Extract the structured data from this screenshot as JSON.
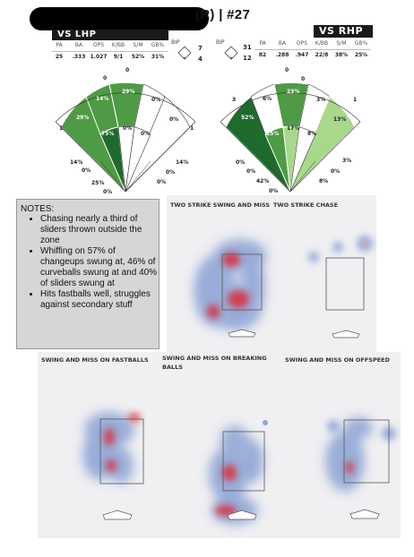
{
  "header": {
    "title": "(R) | #27"
  },
  "lhp": {
    "title": "VS LHP",
    "headers": [
      "PA",
      "BA",
      "OPS",
      "K/BB",
      "S/M",
      "GB%"
    ],
    "values": [
      "25",
      ".333",
      "1.027",
      "9/1",
      "52%",
      "31%"
    ],
    "bip_label": "BIP",
    "bip_top": "7",
    "bip_bottom": "4",
    "zones": {
      "outer_left": "29%",
      "outer_leftcenter": "14%",
      "outer_center": "29%",
      "outer_rightcenter": "0%",
      "outer_right": "0%",
      "inner_left": "75%",
      "inner_center": "0%",
      "inner_right": "0%",
      "foul_left": "14%",
      "foul_right": "14%",
      "bottom_1": "0%",
      "bottom_2": "25%",
      "bottom_3": "0%",
      "bottom_4": "0%",
      "bottom_5": "0%",
      "arc_labels": [
        "0",
        "1",
        "0",
        "1"
      ]
    }
  },
  "rhp": {
    "title": "VS RHP",
    "headers": [
      "PA",
      "BA",
      "OPS",
      "K/BB",
      "S/M",
      "GB%"
    ],
    "values": [
      "82",
      ".288",
      ".947",
      "22/8",
      "38%",
      "25%"
    ],
    "bip_label": "BIP",
    "bip_top": "31",
    "bip_bottom": "12",
    "zones": {
      "outer_left": "52%",
      "outer_leftcenter": "6%",
      "outer_center": "23%",
      "outer_rightcenter": "3%",
      "outer_right": "13%",
      "inner_left": "25%",
      "inner_center": "17%",
      "inner_right": "8%",
      "foul_left": "0%",
      "foul_right": "3%",
      "bottom_1": "0%",
      "bottom_2": "42%",
      "bottom_3": "0%",
      "bottom_4": "8%",
      "bottom_5": "0%",
      "arc_labels": [
        "3",
        "0",
        "1",
        "0"
      ]
    }
  },
  "notes": {
    "heading": "NOTES:",
    "items": [
      "Chasing nearly a third of sliders thrown outside the zone",
      "Whiffing on 57% of changeups swung at, 46% of curveballs swung at and 40% of sliders swung at",
      "Hits fastballs well, struggles against secondary stuff"
    ]
  },
  "heatmaps": {
    "two_strike_swing_miss": "TWO STRIKE SWING AND MISS",
    "two_strike_chase": "TWO STRIKE CHASE",
    "swing_miss_fastballs": "SWING AND MISS ON FASTBALLS",
    "swing_miss_breaking": "SWING AND MISS ON BREAKING BALLS",
    "swing_miss_offspeed": "SWING AND MISS ON OFFSPEED"
  },
  "colors": {
    "dark_green": "#1f6b2e",
    "mid_green": "#4f9a45",
    "light_green": "#a8d88a",
    "heat_blue": "#8fa6d6",
    "heat_red": "#e0242b"
  }
}
